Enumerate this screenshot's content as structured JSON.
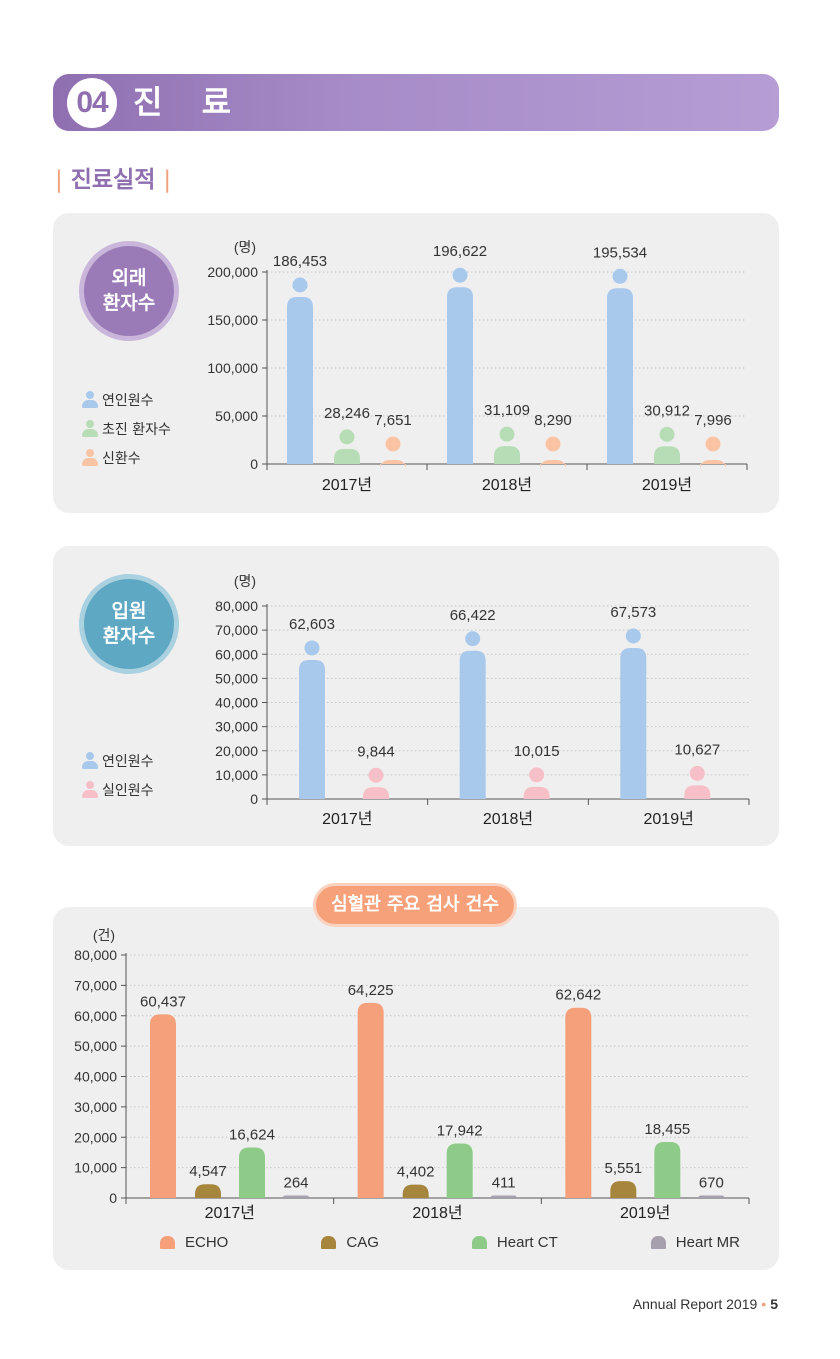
{
  "header": {
    "number": "04",
    "title": "진 료"
  },
  "subtitle": {
    "text": "진료실적",
    "bar": "|"
  },
  "outpatient": {
    "badge_line1": "외래",
    "badge_line2": "환자수",
    "unit": "(명)",
    "legend": [
      "연인원수",
      "초진 환자수",
      "신환수"
    ]
  },
  "inpatient": {
    "badge_line1": "입원",
    "badge_line2": "환자수",
    "unit": "(명)",
    "legend": [
      "연인원수",
      "실인원수"
    ]
  },
  "cardio": {
    "pill": "심혈관 주요 검사 건수",
    "unit": "(건)",
    "legend": [
      "ECHO",
      "CAG",
      "Heart CT",
      "Heart MR"
    ]
  },
  "footer": {
    "text": "Annual  Report  2019",
    "dot": "•",
    "page": "5"
  },
  "colors": {
    "purple": "#8f6fb0",
    "teal": "#5fa8c4",
    "blue": "#a8c8ec",
    "green": "#b7ddb6",
    "peach": "#f9c3a4",
    "pink": "#f7bfc8",
    "echo": "#f5a07a",
    "cag": "#a6853c",
    "ct": "#8ecb89",
    "mr": "#a59fae"
  },
  "chart_data": [
    {
      "type": "bar",
      "title": "",
      "ylabel": "(명)",
      "categories": [
        "2017년",
        "2018년",
        "2019년"
      ],
      "ylim": [
        0,
        200000
      ],
      "yticks": [
        0,
        50000,
        100000,
        150000,
        200000
      ],
      "series": [
        {
          "name": "연인원수",
          "values": [
            186453,
            196622,
            195534
          ],
          "color": "#a8c8ec"
        },
        {
          "name": "초진 환자수",
          "values": [
            28246,
            31109,
            30912
          ],
          "color": "#b7ddb6"
        },
        {
          "name": "신환수",
          "values": [
            7651,
            8290,
            7996
          ],
          "color": "#f9c3a4"
        }
      ],
      "style": "pictogram"
    },
    {
      "type": "bar",
      "title": "",
      "ylabel": "(명)",
      "categories": [
        "2017년",
        "2018년",
        "2019년"
      ],
      "ylim": [
        0,
        80000
      ],
      "yticks": [
        0,
        10000,
        20000,
        30000,
        40000,
        50000,
        60000,
        70000,
        80000
      ],
      "series": [
        {
          "name": "연인원수",
          "values": [
            62603,
            66422,
            67573
          ],
          "color": "#a8c8ec"
        },
        {
          "name": "실인원수",
          "values": [
            9844,
            10015,
            10627
          ],
          "color": "#f7bfc8"
        }
      ],
      "style": "pictogram"
    },
    {
      "type": "bar",
      "title": "심혈관 주요 검사 건수",
      "ylabel": "(건)",
      "categories": [
        "2017년",
        "2018년",
        "2019년"
      ],
      "ylim": [
        0,
        80000
      ],
      "yticks": [
        0,
        10000,
        20000,
        30000,
        40000,
        50000,
        60000,
        70000,
        80000
      ],
      "series": [
        {
          "name": "ECHO",
          "values": [
            60437,
            64225,
            62642
          ],
          "color": "#f5a07a"
        },
        {
          "name": "CAG",
          "values": [
            4547,
            4402,
            5551
          ],
          "color": "#a6853c"
        },
        {
          "name": "Heart CT",
          "values": [
            16624,
            17942,
            18455
          ],
          "color": "#8ecb89"
        },
        {
          "name": "Heart MR",
          "values": [
            264,
            411,
            670
          ],
          "color": "#a59fae"
        }
      ],
      "style": "rounded"
    }
  ]
}
